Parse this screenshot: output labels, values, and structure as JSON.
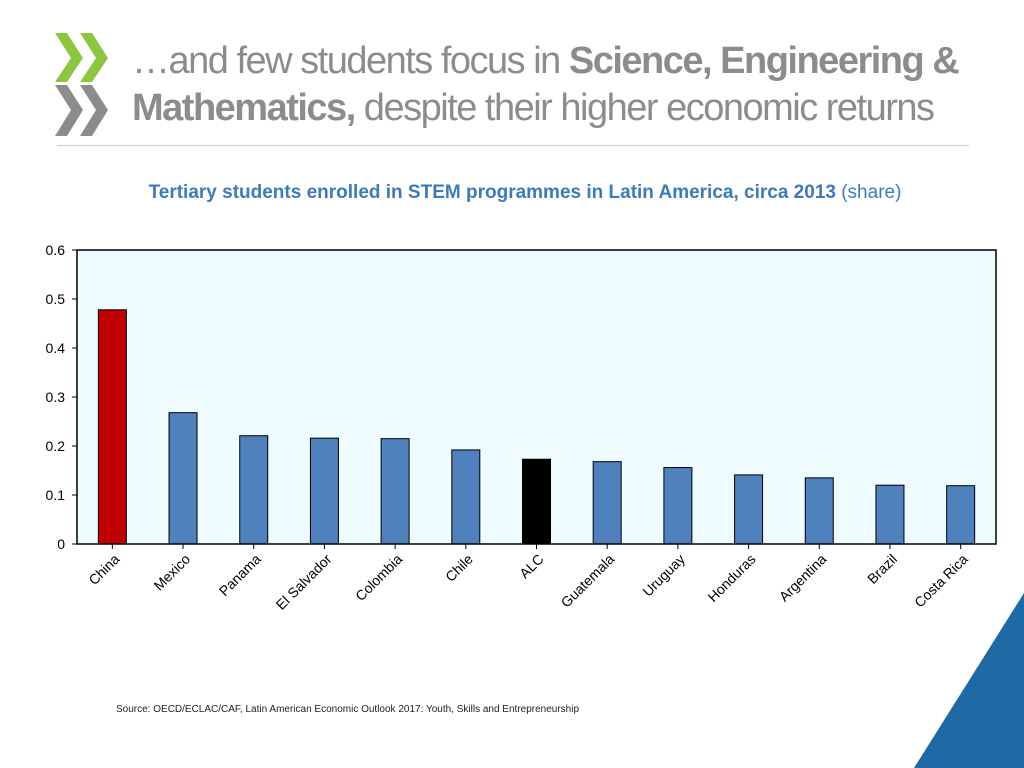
{
  "header": {
    "title_lead": "…and few students focus in ",
    "title_bold_1": "Science, Engineering &",
    "title_bold_2": "Mathematics,",
    "title_tail": " despite their higher economic returns"
  },
  "chart_title": {
    "main": "Tertiary students enrolled in STEM programmes in Latin America, circa 2013",
    "unit": " (share)"
  },
  "source": "Source: OECD/ECLAC/CAF, Latin American Economic Outlook 2017: Youth, Skills and Entrepreneurship",
  "colors": {
    "default_bar": "#4f81bd",
    "highlight_china": "#c00000",
    "highlight_alc": "#000000",
    "plot_background": "#eefbff",
    "title_blue": "#3d7ab8",
    "logo_green": "#8cc63f",
    "logo_grey": "#8c8c8c",
    "corner_blue": "#1f6aa5"
  },
  "chart_data": {
    "type": "bar",
    "categories": [
      "China",
      "Mexico",
      "Panama",
      "El Salvador",
      "Colombia",
      "Chile",
      "ALC",
      "Guatemala",
      "Uruguay",
      "Honduras",
      "Argentina",
      "Brazil",
      "Costa Rica"
    ],
    "values": [
      0.478,
      0.268,
      0.221,
      0.216,
      0.215,
      0.192,
      0.173,
      0.168,
      0.156,
      0.141,
      0.135,
      0.12,
      0.119
    ],
    "highlights": {
      "China": "highlight_china",
      "ALC": "highlight_alc"
    },
    "ylim": [
      0,
      0.6
    ],
    "yticks": [
      "0",
      "0.1",
      "0.2",
      "0.3",
      "0.4",
      "0.5",
      "0.6"
    ],
    "title": "Tertiary students enrolled in STEM programmes in Latin America, circa 2013 (share)",
    "xlabel": "",
    "ylabel": "",
    "grid": false,
    "legend": "none"
  }
}
